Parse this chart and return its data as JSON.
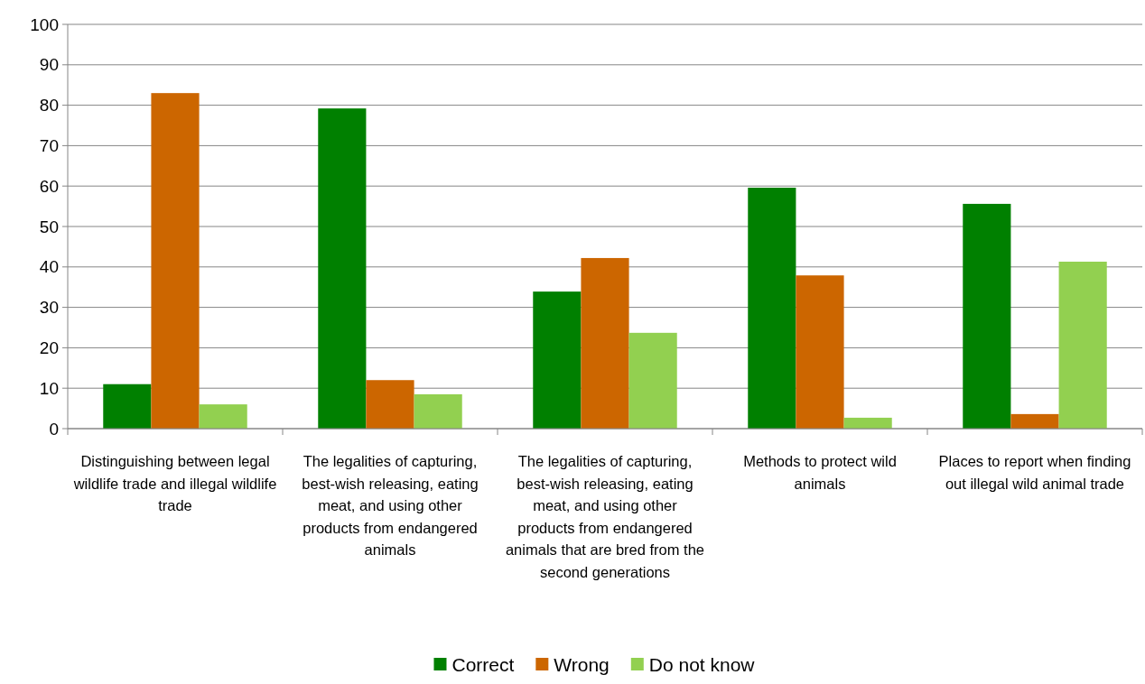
{
  "chart_data": {
    "type": "bar",
    "categories": [
      "Distinguishing between legal wildlife trade and illegal wildlife trade",
      "The legalities of capturing, best-wish releasing, eating meat, and using other products from endangered animals",
      "The legalities of capturing, best-wish releasing, eating meat, and using other products from endangered animals that are bred from the second generations",
      "Methods to protect wild animals",
      "Places to report when finding out illegal wild animal trade"
    ],
    "series": [
      {
        "name": "Correct",
        "color": "#008000",
        "values": [
          11,
          79.2,
          33.9,
          59.6,
          55.6
        ]
      },
      {
        "name": "Wrong",
        "color": "#cc6600",
        "values": [
          83,
          12,
          42.2,
          37.9,
          3.6
        ]
      },
      {
        "name": "Do not know",
        "color": "#92d050",
        "values": [
          6,
          8.5,
          23.7,
          2.7,
          41.3
        ]
      }
    ],
    "ylim": [
      0,
      100
    ],
    "yticks": [
      0,
      10,
      20,
      30,
      40,
      50,
      60,
      70,
      80,
      90,
      100
    ],
    "grid": "y",
    "legend": "bottom"
  }
}
